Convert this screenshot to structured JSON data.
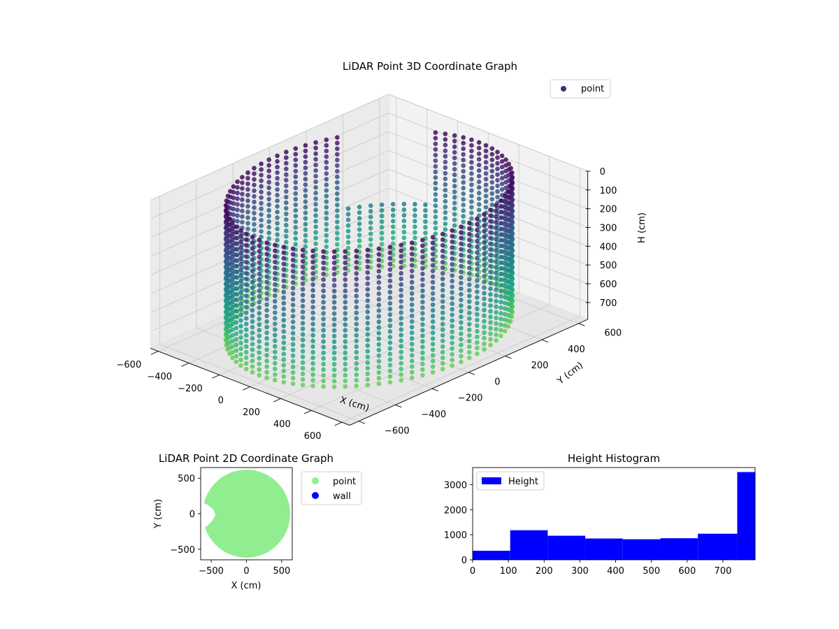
{
  "chart_data": [
    {
      "type": "scatter",
      "projection": "3d",
      "title": "LiDAR Point 3D Coordinate Graph",
      "xlabel": "X (cm)",
      "ylabel": "Y (cm)",
      "zlabel": "H (cm)",
      "xticks": [
        -600,
        -400,
        -200,
        0,
        200,
        400,
        600
      ],
      "yticks": [
        600,
        400,
        200,
        0,
        -200,
        -400,
        -600
      ],
      "zticks": [
        0,
        100,
        200,
        300,
        400,
        500,
        600,
        700
      ],
      "xlim": [
        -650,
        650
      ],
      "ylim": [
        -650,
        650
      ],
      "zlim": [
        0,
        790
      ],
      "z_inverted": true,
      "colormap": "viridis",
      "legend": {
        "entries": [
          {
            "label": "point",
            "color": "#482878"
          }
        ],
        "placement": "upper-right"
      },
      "series": [
        {
          "name": "point",
          "shape": "cylindrical wall of points",
          "radius": 600,
          "height_range": [
            0,
            790
          ]
        }
      ],
      "grid": true
    },
    {
      "type": "scatter",
      "title": "LiDAR Point 2D Coordinate Graph",
      "xlabel": "X (cm)",
      "ylabel": "Y (cm)",
      "xticks": [
        -500,
        0,
        500
      ],
      "yticks": [
        500,
        0,
        -500
      ],
      "xlim": [
        -650,
        650
      ],
      "ylim": [
        -650,
        650
      ],
      "legend": {
        "entries": [
          {
            "label": "point",
            "color": "#90ee90"
          },
          {
            "label": "wall",
            "color": "#0000ff"
          }
        ],
        "placement": "outside-right"
      },
      "series": [
        {
          "name": "point",
          "shape": "filled disc",
          "radius": 620
        }
      ]
    },
    {
      "type": "bar",
      "subtype": "histogram",
      "title": "Height Histogram",
      "xticks": [
        0,
        100,
        200,
        300,
        400,
        500,
        600,
        700
      ],
      "yticks": [
        0,
        1000,
        2000,
        3000
      ],
      "xlim": [
        0,
        790
      ],
      "ylim": [
        0,
        3680
      ],
      "bin_edges": [
        0,
        105,
        210,
        315,
        420,
        525,
        630,
        740,
        790
      ],
      "values": [
        360,
        1180,
        960,
        850,
        820,
        860,
        1040,
        3500
      ],
      "color": "#0000ff",
      "legend": {
        "entries": [
          {
            "label": "Height",
            "color": "#0000ff"
          }
        ],
        "placement": "top-left"
      }
    }
  ]
}
